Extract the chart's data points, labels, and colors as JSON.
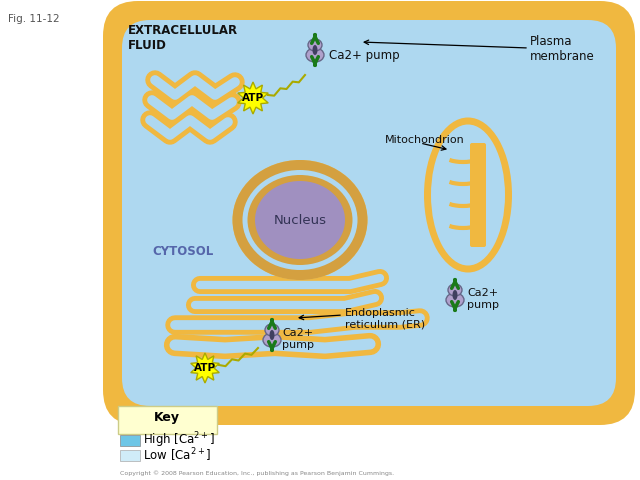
{
  "fig_label": "Fig. 11-12",
  "bg_color": "#ffffff",
  "extracellular_color": "#6ec6e6",
  "cell_outer_color": "#f0b840",
  "cell_inner_color": "#aed8f0",
  "er_color": "#f0b840",
  "nucleus_outer_color": "#e8c870",
  "nucleus_inner_color": "#a090c0",
  "mitochondrion_outer": "#f0b840",
  "mitochondrion_inner": "#aed8f0",
  "pump_body_color": "#b0a0cc",
  "pump_arrow_color": "#1a7a1a",
  "atp_color": "#ffff00",
  "key_bg": "#fffff0",
  "high_ca_color": "#6ec6e6",
  "low_ca_color": "#d0ecf8",
  "title_extracellular": "EXTRACELLULAR\nFLUID",
  "label_plasma": "Plasma\nmembrane",
  "label_ca_pump1": "Ca2+ pump",
  "label_mito": "Mitochondrion",
  "label_nucleus": "Nucleus",
  "label_cytosol": "CYTOSOL",
  "label_ca_pump2": "Ca2+\npump",
  "label_er": "Endoplasmic\nreticulum (ER)",
  "label_ca_pump3": "Ca2+\npump",
  "label_atp": "ATP",
  "label_key": "Key",
  "label_high_ca": "High [Ca",
  "label_low_ca": "Low [Ca",
  "copyright": "Copyright © 2008 Pearson Education, Inc., publishing as Pearson Benjamin Cummings."
}
